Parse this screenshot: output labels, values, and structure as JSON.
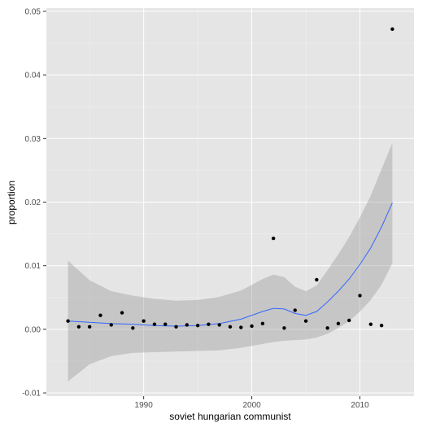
{
  "chart_data": {
    "type": "scatter",
    "title": "",
    "xlabel": "soviet hungarian communist",
    "ylabel": "proportion",
    "xlim": [
      1981,
      2015
    ],
    "ylim": [
      -0.0105,
      0.0505
    ],
    "x_ticks": [
      1990,
      2000,
      2010
    ],
    "y_ticks": [
      -0.01,
      0.0,
      0.01,
      0.02,
      0.03,
      0.04,
      0.05
    ],
    "x_tick_labels": [
      "1990",
      "2000",
      "2010"
    ],
    "y_tick_labels": [
      "-0.01",
      "0.00",
      "0.01",
      "0.02",
      "0.03",
      "0.04",
      "0.05"
    ],
    "grid": true,
    "legend": "none",
    "colors": {
      "panel": "#e5e5e5",
      "grid_major": "#ffffff",
      "grid_minor": "#f2f2f2",
      "points": "#000000",
      "smooth_line": "#3366ff",
      "ribbon": "#999999"
    },
    "points": {
      "x": [
        1983,
        1984,
        1985,
        1986,
        1987,
        1988,
        1989,
        1990,
        1991,
        1992,
        1993,
        1994,
        1995,
        1996,
        1997,
        1998,
        1999,
        2000,
        2001,
        2002,
        2003,
        2004,
        2005,
        2006,
        2007,
        2008,
        2009,
        2010,
        2011,
        2012,
        2013
      ],
      "y": [
        0.0013,
        0.0004,
        0.0004,
        0.0022,
        0.0007,
        0.0026,
        0.0002,
        0.0013,
        0.0008,
        0.0008,
        0.0004,
        0.0007,
        0.0006,
        0.0008,
        0.0007,
        0.0004,
        0.0003,
        0.0005,
        0.0009,
        0.0143,
        0.0002,
        0.003,
        0.0013,
        0.0078,
        0.0002,
        0.0009,
        0.0014,
        0.0053,
        0.0008,
        0.0006,
        0.0472
      ]
    },
    "smooth": {
      "method": "loess",
      "x": [
        1983,
        1985,
        1987,
        1989,
        1991,
        1993,
        1995,
        1997,
        1999,
        2001,
        2002,
        2003,
        2004,
        2005,
        2006,
        2007,
        2008,
        2009,
        2010,
        2011,
        2012,
        2013
      ],
      "y": [
        0.0013,
        0.0011,
        0.0009,
        0.0008,
        0.0006,
        0.0005,
        0.0006,
        0.0009,
        0.0016,
        0.0028,
        0.0033,
        0.0032,
        0.0025,
        0.0022,
        0.0028,
        0.0043,
        0.006,
        0.0079,
        0.0102,
        0.0128,
        0.0161,
        0.0199
      ],
      "lower": [
        -0.0082,
        -0.0055,
        -0.0042,
        -0.0037,
        -0.0036,
        -0.0035,
        -0.0034,
        -0.0033,
        -0.0029,
        -0.0023,
        -0.002,
        -0.0018,
        -0.0017,
        -0.0016,
        -0.0013,
        -0.0007,
        0.0002,
        0.0013,
        0.0028,
        0.0046,
        0.007,
        0.0104
      ],
      "upper": [
        0.0108,
        0.0077,
        0.006,
        0.0053,
        0.0048,
        0.0045,
        0.0046,
        0.0051,
        0.0061,
        0.0079,
        0.0086,
        0.0082,
        0.0067,
        0.006,
        0.0069,
        0.0093,
        0.0118,
        0.0145,
        0.0176,
        0.021,
        0.0252,
        0.0293
      ]
    }
  }
}
